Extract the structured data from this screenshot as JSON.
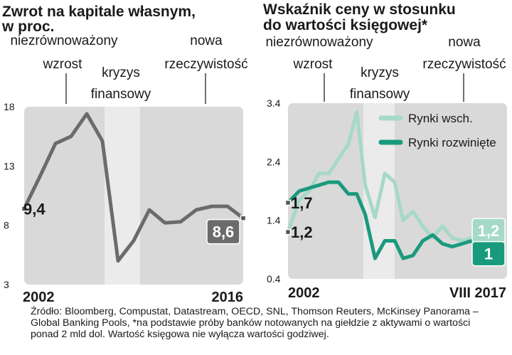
{
  "chart_data": [
    {
      "type": "line",
      "title": "Zwrot na kapitale własnym, w proc.",
      "phases": [
        "niezrównoważony wzrost",
        "kryzys finansowy",
        "nowa rzeczywistość"
      ],
      "phase_lines": [
        [
          "niezrównoważony",
          "wzrost"
        ],
        [
          "kryzys",
          "finansowy"
        ],
        [
          "nowa",
          "rzeczywistość"
        ]
      ],
      "y_ticks": [
        "18",
        "13",
        "8",
        "3"
      ],
      "ylim": [
        3,
        18
      ],
      "x_labels": [
        "2002",
        "2016"
      ],
      "xlim": [
        2002,
        2016
      ],
      "crisis_period": [
        2007,
        2009
      ],
      "series": [
        {
          "color": "#6b6b6b",
          "x": [
            2002,
            2003,
            2004,
            2005,
            2006,
            2007,
            2008,
            2009,
            2010,
            2011,
            2012,
            2013,
            2014,
            2015,
            2016
          ],
          "values": [
            9.4,
            12.1,
            14.9,
            15.5,
            17.4,
            15.1,
            5.0,
            6.7,
            9.3,
            8.2,
            8.3,
            9.3,
            9.6,
            9.6,
            8.6
          ]
        }
      ],
      "annotations": [
        {
          "text": "9,4",
          "x": 2002,
          "y": 9.4,
          "style": "plain"
        },
        {
          "text": "8,6",
          "x": 2016,
          "y": 8.6,
          "style": "box",
          "color": "#6b6b6b"
        }
      ]
    },
    {
      "type": "line",
      "title": "Wskaźnik ceny w stosunku do wartości księgowej*",
      "title_lines": [
        "Wskaźnik ceny w stosunku",
        "do wartości księgowej*"
      ],
      "phases": [
        "niezrównoważony wzrost",
        "kryzys finansowy",
        "nowa rzeczywistość"
      ],
      "phase_lines": [
        [
          "niezrównoważony",
          "wzrost"
        ],
        [
          "kryzys",
          "finansowy"
        ],
        [
          "nowa",
          "rzeczywistość"
        ]
      ],
      "y_ticks": [
        "3.4",
        "2.4",
        "1.4",
        "0.4"
      ],
      "ylim": [
        0.4,
        3.4
      ],
      "x_labels": [
        "2002",
        "VIII 2017"
      ],
      "xlim": [
        2002,
        2017.6
      ],
      "crisis_period": [
        2007,
        2009
      ],
      "legend": {
        "position": "top-right"
      },
      "series": [
        {
          "name": "Rynki wsch.",
          "color": "#a6d9c6",
          "x": [
            2002,
            2002.8,
            2003.5,
            2004.2,
            2004.9,
            2005.6,
            2006.3,
            2006.9,
            2007.5,
            2008.2,
            2008.9,
            2009.6,
            2010.2,
            2010.9,
            2011.6,
            2012.3,
            2013,
            2013.7,
            2014.4,
            2015.1,
            2015.8,
            2016.5,
            2017.2
          ],
          "values": [
            1.2,
            1.75,
            1.9,
            2.2,
            2.2,
            2.45,
            2.7,
            3.25,
            2.0,
            1.45,
            2.2,
            2.05,
            1.4,
            1.55,
            1.3,
            1.1,
            1.3,
            1.1,
            1.05,
            1.1,
            1.15,
            1.2,
            1.2
          ]
        },
        {
          "name": "Rynki rozwinięte",
          "color": "#1a9a7d",
          "x": [
            2002,
            2002.8,
            2003.5,
            2004.2,
            2004.9,
            2005.6,
            2006.3,
            2006.9,
            2007.5,
            2008.2,
            2008.9,
            2009.6,
            2010.2,
            2010.9,
            2011.6,
            2012.3,
            2013,
            2013.7,
            2014.4,
            2015.1,
            2015.8,
            2016.5,
            2017.2
          ],
          "values": [
            1.7,
            1.9,
            1.95,
            2.0,
            2.05,
            2.05,
            1.85,
            1.85,
            1.5,
            0.75,
            1.05,
            1.05,
            0.75,
            0.8,
            1.05,
            1.15,
            1.0,
            0.95,
            1.0,
            1.05,
            1.0,
            1.0,
            1.0
          ]
        }
      ],
      "annotations": [
        {
          "text": "1,7",
          "x": 2002,
          "y": 1.7,
          "style": "plain"
        },
        {
          "text": "1,2",
          "x": 2002,
          "y": 1.2,
          "style": "plain"
        },
        {
          "text": "1,2",
          "x": 2017.6,
          "y": 1.2,
          "style": "box",
          "color": "#a6d9c6"
        },
        {
          "text": "1",
          "x": 2017.6,
          "y": 1.0,
          "style": "box",
          "color": "#1a9a7d"
        }
      ]
    }
  ],
  "source_text": "Źródło: Bloomberg, Compustat, Datastream, OECD, SNL, Thomson Reuters, McKinsey Panorama – Global Banking Pools, *na podstawie próby banków notowanych na giełdzie z aktywami o wartości ponad 2 mld dol. Wartość księgowa nie wyłącza wartości godziwej."
}
